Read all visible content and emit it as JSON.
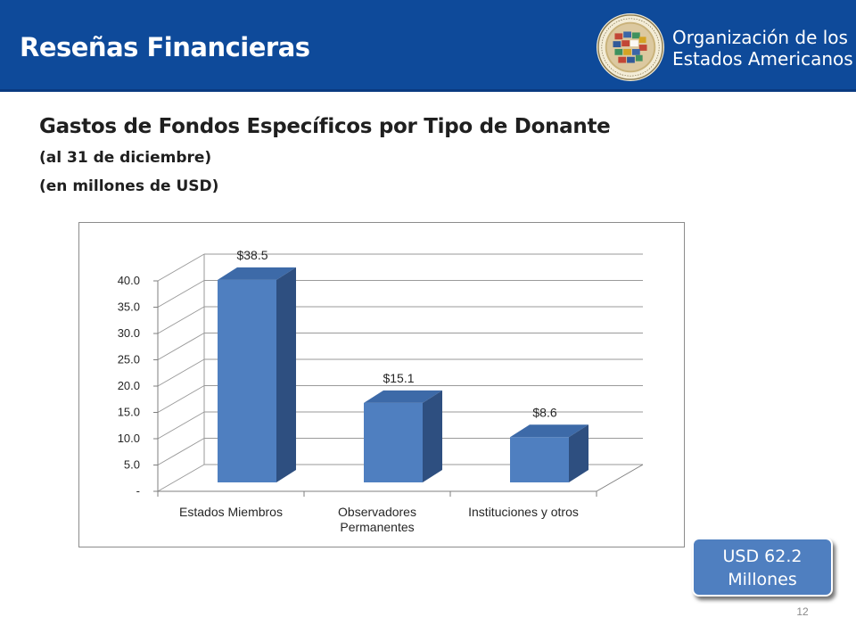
{
  "header": {
    "title": "Reseñas Financieras",
    "org_name_line1": "Organización de los",
    "org_name_line2": "Estados Americanos",
    "color": "#0e4a9a"
  },
  "slide": {
    "title": "Gastos de Fondos Específicos por Tipo de Donante",
    "subtitle1": "(al 31 de diciembre)",
    "subtitle2": "(en millones de USD)",
    "total_line1": "USD 62.2",
    "total_line2": "Millones",
    "page_number": "12"
  },
  "chart_data": {
    "type": "bar",
    "style": "3d-column",
    "categories": [
      "Estados Miembros",
      "Observadores Permanentes",
      "Instituciones y otros"
    ],
    "category_labels": [
      [
        "Estados Miembros"
      ],
      [
        "Observadores",
        "Permanentes"
      ],
      [
        "Instituciones y otros"
      ]
    ],
    "values": [
      38.5,
      15.1,
      8.6
    ],
    "data_labels": [
      "$38.5",
      "$15.1",
      "$8.6"
    ],
    "yticks": [
      "-",
      "5.0",
      "10.0",
      "15.0",
      "20.0",
      "25.0",
      "30.0",
      "35.0",
      "40.0"
    ],
    "ylim": [
      0,
      40
    ],
    "grid": true,
    "bar_color": "#4f7fc0"
  }
}
